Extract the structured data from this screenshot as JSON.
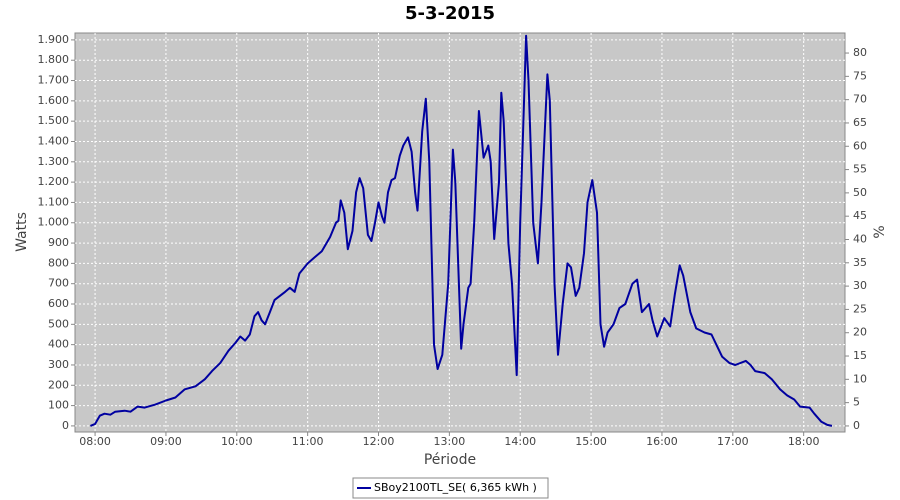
{
  "chart_data": {
    "type": "line",
    "title": "5-3-2015",
    "x_label": "Période",
    "y_label": "Watts",
    "y2_label": "%",
    "x": [
      "07:56",
      "08:00",
      "08:04",
      "08:08",
      "08:13",
      "08:17",
      "08:25",
      "08:30",
      "08:36",
      "08:42",
      "08:51",
      "09:00",
      "09:08",
      "09:16",
      "09:25",
      "09:33",
      "09:39",
      "09:46",
      "09:53",
      "09:59",
      "10:03",
      "10:07",
      "10:11",
      "10:15",
      "10:18",
      "10:21",
      "10:24",
      "10:28",
      "10:32",
      "10:41",
      "10:45",
      "10:49",
      "10:53",
      "11:00",
      "11:06",
      "11:12",
      "11:19",
      "11:24",
      "11:26",
      "11:28",
      "11:31",
      "11:34",
      "11:38",
      "11:41",
      "11:44",
      "11:47",
      "11:51",
      "11:54",
      "11:57",
      "12:00",
      "12:03",
      "12:05",
      "12:08",
      "12:11",
      "12:14",
      "12:18",
      "12:21",
      "12:25",
      "12:28",
      "12:31",
      "12:33",
      "12:37",
      "12:40",
      "12:43",
      "12:47",
      "12:50",
      "12:54",
      "12:59",
      "13:03",
      "13:05",
      "13:10",
      "13:12",
      "13:16",
      "13:18",
      "13:21",
      "13:25",
      "13:29",
      "13:33",
      "13:35",
      "13:38",
      "13:42",
      "13:44",
      "13:46",
      "13:50",
      "13:53",
      "13:57",
      "14:00",
      "14:05",
      "14:07",
      "14:11",
      "14:15",
      "14:18",
      "14:23",
      "14:25",
      "14:29",
      "14:32",
      "14:36",
      "14:40",
      "14:43",
      "14:47",
      "14:50",
      "14:54",
      "14:57",
      "15:01",
      "15:05",
      "15:08",
      "15:11",
      "15:14",
      "15:19",
      "15:24",
      "15:29",
      "15:35",
      "15:39",
      "15:43",
      "15:49",
      "15:52",
      "15:56",
      "16:02",
      "16:07",
      "16:11",
      "16:15",
      "16:18",
      "16:24",
      "16:29",
      "16:36",
      "16:42",
      "16:46",
      "16:51",
      "16:57",
      "17:02",
      "17:11",
      "17:15",
      "17:19",
      "17:27",
      "17:33",
      "17:40",
      "17:46",
      "17:52",
      "17:57",
      "18:05",
      "18:09",
      "18:15",
      "18:20",
      "18:24"
    ],
    "series": [
      {
        "name": "SBoy2100TL_SE( 6,365 kWh )",
        "color": "#0000a0",
        "values": [
          0,
          10,
          50,
          60,
          55,
          70,
          75,
          70,
          95,
          90,
          105,
          125,
          140,
          180,
          195,
          230,
          270,
          310,
          370,
          410,
          440,
          420,
          450,
          540,
          560,
          520,
          500,
          560,
          620,
          660,
          680,
          660,
          750,
          800,
          830,
          860,
          930,
          1000,
          1010,
          1110,
          1050,
          870,
          960,
          1150,
          1220,
          1170,
          940,
          910,
          1000,
          1100,
          1030,
          1000,
          1150,
          1210,
          1220,
          1330,
          1380,
          1420,
          1350,
          1150,
          1060,
          1450,
          1610,
          1300,
          400,
          280,
          350,
          700,
          1360,
          1200,
          380,
          500,
          680,
          700,
          1000,
          1550,
          1320,
          1380,
          1300,
          920,
          1200,
          1640,
          1500,
          900,
          700,
          250,
          1000,
          1920,
          1700,
          1000,
          800,
          1100,
          1730,
          1600,
          700,
          350,
          600,
          800,
          780,
          640,
          680,
          850,
          1100,
          1210,
          1050,
          500,
          390,
          460,
          500,
          580,
          600,
          700,
          720,
          560,
          600,
          520,
          440,
          530,
          490,
          650,
          790,
          740,
          560,
          480,
          460,
          450,
          400,
          340,
          310,
          300,
          320,
          300,
          270,
          260,
          230,
          180,
          150,
          130,
          95,
          90,
          60,
          20,
          5,
          0
        ]
      }
    ],
    "xlim": [
      "07:43",
      "18:35"
    ],
    "xticks": [
      "08:00",
      "09:00",
      "10:00",
      "11:00",
      "12:00",
      "13:00",
      "14:00",
      "15:00",
      "16:00",
      "17:00",
      "18:00"
    ],
    "ylim": [
      -30,
      1934
    ],
    "yticks": [
      0,
      100,
      200,
      300,
      400,
      500,
      600,
      700,
      800,
      900,
      {
        "value": 1000,
        "label": "1.000"
      },
      {
        "value": 1100,
        "label": "1.100"
      },
      {
        "value": 1200,
        "label": "1.200"
      },
      {
        "value": 1300,
        "label": "1.300"
      },
      {
        "value": 1400,
        "label": "1.400"
      },
      {
        "value": 1500,
        "label": "1.500"
      },
      {
        "value": 1600,
        "label": "1.600"
      },
      {
        "value": 1700,
        "label": "1.700"
      },
      {
        "value": 1800,
        "label": "1.800"
      },
      {
        "value": 1900,
        "label": "1.900"
      }
    ],
    "y2lim": [
      -1.3,
      84.3
    ],
    "y2ticks": [
      0,
      5,
      10,
      15,
      20,
      25,
      30,
      35,
      40,
      45,
      50,
      55,
      60,
      65,
      70,
      75,
      80
    ],
    "grid": true
  }
}
